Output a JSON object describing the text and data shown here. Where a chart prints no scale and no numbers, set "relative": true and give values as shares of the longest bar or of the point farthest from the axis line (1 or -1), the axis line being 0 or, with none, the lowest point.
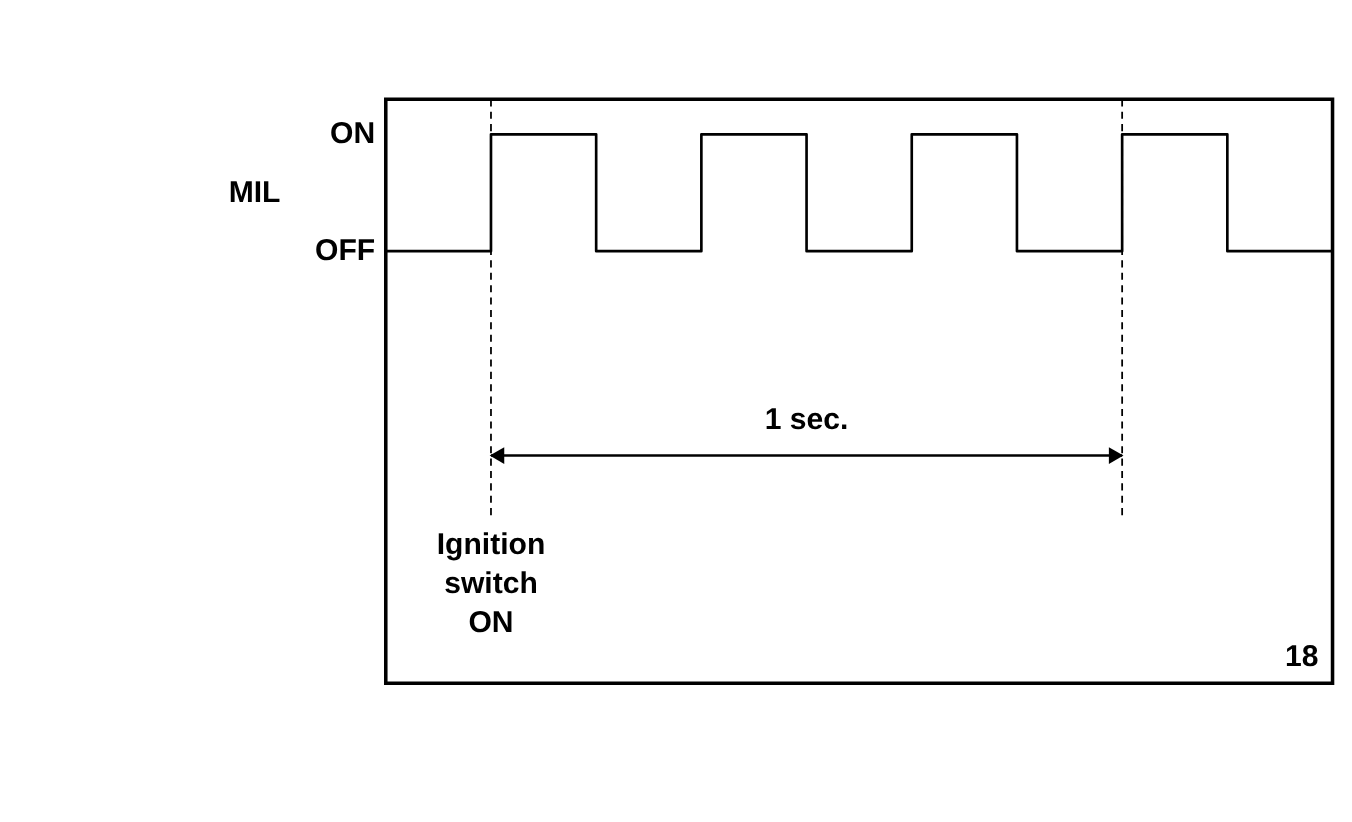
{
  "chart_data": {
    "type": "step",
    "ylabel": "MIL",
    "categories": [
      null,
      null,
      null,
      null,
      null,
      null,
      null,
      null,
      null,
      null
    ],
    "series": [
      {
        "color": "#000000",
        "values": [
          0,
          1,
          0,
          1,
          0,
          1,
          0,
          1,
          0,
          1
        ]
      }
    ],
    "relative": true,
    "tick_labels": false,
    "grid": false,
    "marker": "none",
    "line_style": "solid",
    "annotations": [
      "ON",
      "OFF",
      "1 sec.",
      "Ignition switch ON",
      "18"
    ]
  }
}
